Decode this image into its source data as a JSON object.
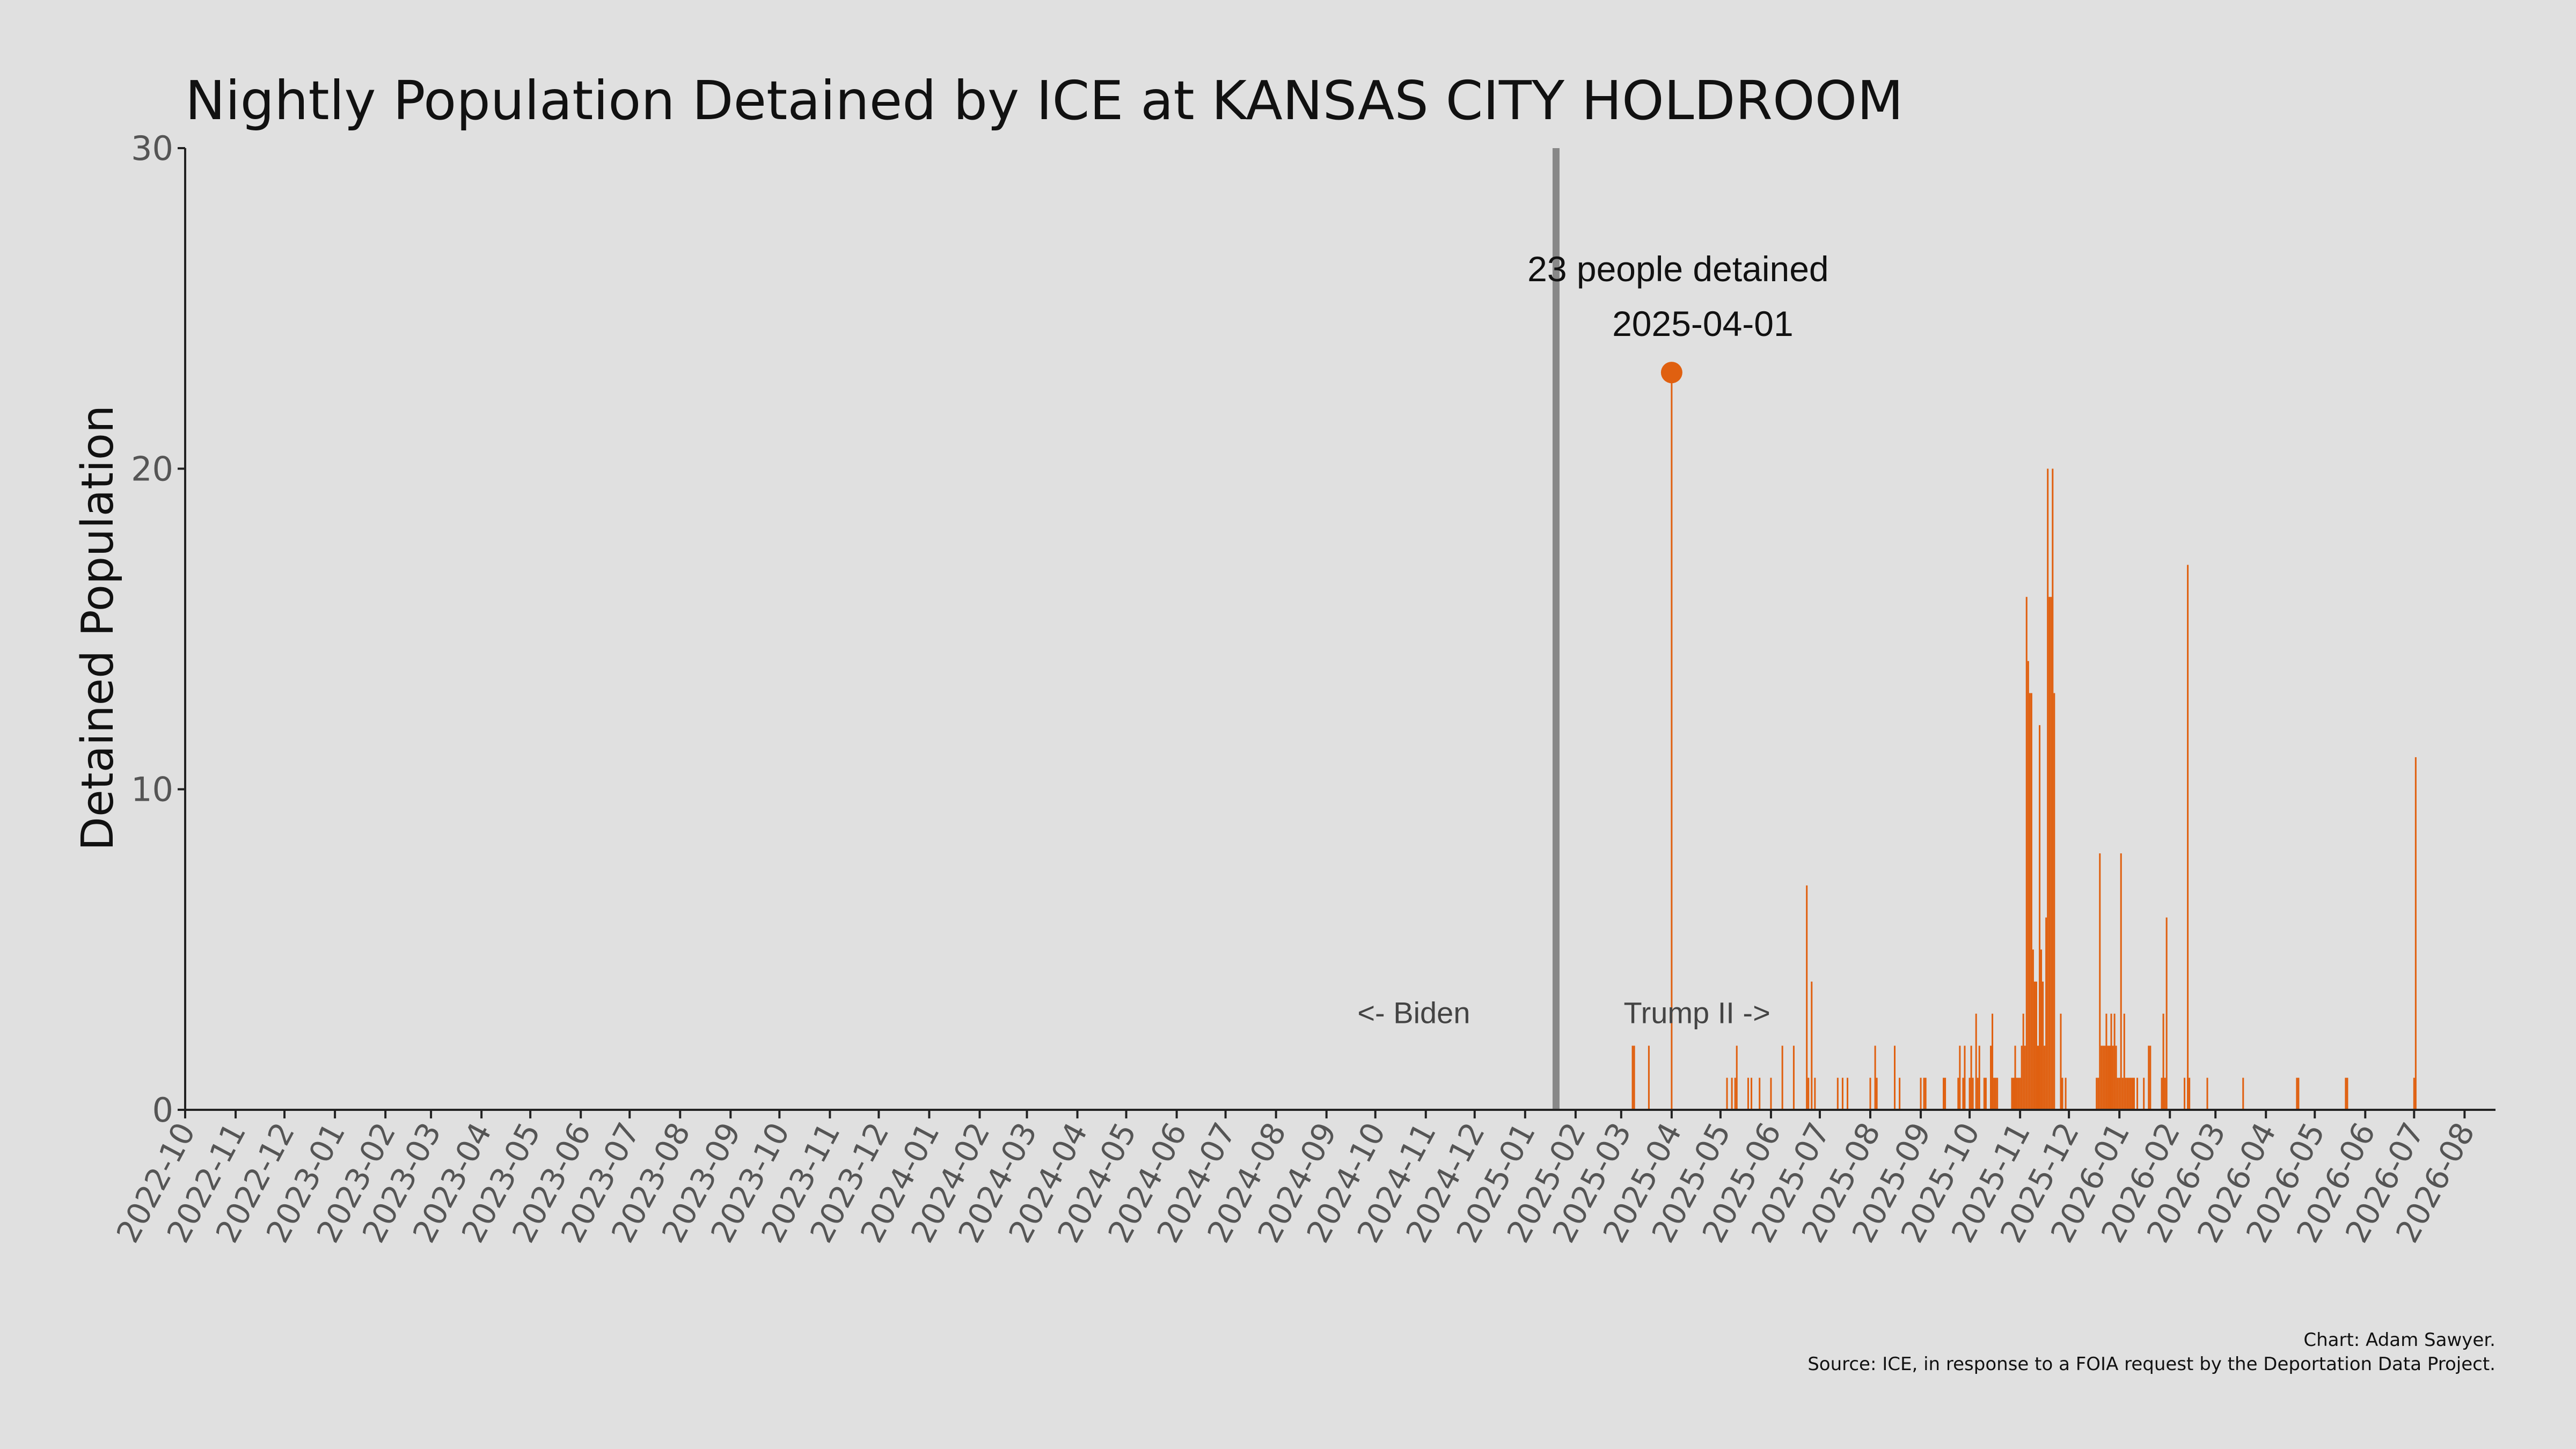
{
  "colors": {
    "background": "#e0e0e0",
    "bar": "#e06010",
    "policy_line": "#888888",
    "axis": "#222222",
    "text": "#111111",
    "tick_text": "#555555"
  },
  "chart_data": {
    "type": "bar",
    "title": "Nightly Population Detained by ICE at KANSAS CITY HOLDROOM",
    "xlabel": "",
    "ylabel": "Detained Population",
    "ylim": [
      0,
      30
    ],
    "y_ticks": [
      0,
      10,
      20,
      30
    ],
    "xlim": [
      "2022-10-01",
      "2026-08-20"
    ],
    "x_tick_labels": [
      "2022-10",
      "2022-11",
      "2022-12",
      "2023-01",
      "2023-02",
      "2023-03",
      "2023-04",
      "2023-05",
      "2023-06",
      "2023-07",
      "2023-08",
      "2023-09",
      "2023-10",
      "2023-11",
      "2023-12",
      "2024-01",
      "2024-02",
      "2024-03",
      "2024-04",
      "2024-05",
      "2024-06",
      "2024-07",
      "2024-08",
      "2024-09",
      "2024-10",
      "2024-11",
      "2024-12",
      "2025-01",
      "2025-02",
      "2025-03",
      "2025-04",
      "2025-05",
      "2025-06",
      "2025-07",
      "2025-08",
      "2025-09",
      "2025-10",
      "2025-11",
      "2025-12",
      "2026-01",
      "2026-02",
      "2026-03",
      "2026-04",
      "2026-05",
      "2026-06",
      "2026-07",
      "2026-08"
    ],
    "grid": false,
    "vertical_line": {
      "date": "2025-01-20"
    },
    "era_labels": {
      "left": "<- Biden",
      "right": "Trump II ->"
    },
    "highlight": {
      "date": "2025-04-01",
      "value": 23,
      "label_line1": "23 people detained",
      "label_line2": "2025-04-01"
    },
    "series": [
      {
        "x": [
          "2025-03-08",
          "2025-03-09",
          "2025-03-18",
          "2025-04-01",
          "2025-05-05",
          "2025-05-08",
          "2025-05-10",
          "2025-05-11",
          "2025-05-18",
          "2025-05-20",
          "2025-05-25",
          "2025-06-01",
          "2025-06-08",
          "2025-06-15",
          "2025-06-23",
          "2025-06-24",
          "2025-06-26",
          "2025-06-28",
          "2025-07-12",
          "2025-07-15",
          "2025-07-18",
          "2025-08-01",
          "2025-08-04",
          "2025-08-05",
          "2025-08-16",
          "2025-08-19",
          "2025-09-01",
          "2025-09-03",
          "2025-09-04",
          "2025-09-15",
          "2025-09-16",
          "2025-09-24",
          "2025-09-25",
          "2025-09-27",
          "2025-09-28",
          "2025-10-01",
          "2025-10-02",
          "2025-10-03",
          "2025-10-05",
          "2025-10-06",
          "2025-10-07",
          "2025-10-10",
          "2025-10-11",
          "2025-10-14",
          "2025-10-15",
          "2025-10-16",
          "2025-10-17",
          "2025-10-18",
          "2025-10-27",
          "2025-10-28",
          "2025-10-29",
          "2025-10-30",
          "2025-10-31",
          "2025-11-01",
          "2025-11-02",
          "2025-11-03",
          "2025-11-04",
          "2025-11-05",
          "2025-11-06",
          "2025-11-07",
          "2025-11-08",
          "2025-11-09",
          "2025-11-10",
          "2025-11-11",
          "2025-11-12",
          "2025-11-13",
          "2025-11-14",
          "2025-11-15",
          "2025-11-16",
          "2025-11-17",
          "2025-11-18",
          "2025-11-19",
          "2025-11-20",
          "2025-11-21",
          "2025-11-22",
          "2025-11-26",
          "2025-11-27",
          "2025-11-29",
          "2025-12-18",
          "2025-12-19",
          "2025-12-20",
          "2025-12-21",
          "2025-12-22",
          "2025-12-23",
          "2025-12-24",
          "2025-12-25",
          "2025-12-26",
          "2025-12-27",
          "2025-12-28",
          "2025-12-29",
          "2025-12-30",
          "2025-12-31",
          "2026-01-01",
          "2026-01-02",
          "2026-01-03",
          "2026-01-04",
          "2026-01-05",
          "2026-01-06",
          "2026-01-07",
          "2026-01-08",
          "2026-01-09",
          "2026-01-10",
          "2026-01-12",
          "2026-01-16",
          "2026-01-19",
          "2026-01-20",
          "2026-01-27",
          "2026-01-28",
          "2026-01-29",
          "2026-01-30",
          "2026-02-10",
          "2026-02-12",
          "2026-02-13",
          "2026-02-24",
          "2026-03-18",
          "2026-04-20",
          "2026-04-21",
          "2026-05-20",
          "2026-05-21",
          "2026-07-01",
          "2026-07-02"
        ],
        "values": [
          2,
          2,
          2,
          23,
          1,
          1,
          1,
          2,
          1,
          1,
          1,
          1,
          2,
          2,
          7,
          1,
          4,
          1,
          1,
          1,
          1,
          1,
          2,
          1,
          2,
          1,
          1,
          1,
          1,
          1,
          1,
          1,
          2,
          1,
          2,
          1,
          2,
          1,
          3,
          1,
          2,
          1,
          1,
          2,
          3,
          1,
          1,
          1,
          1,
          1,
          2,
          1,
          1,
          1,
          2,
          3,
          2,
          16,
          14,
          13,
          13,
          5,
          4,
          4,
          2,
          12,
          5,
          4,
          2,
          6,
          20,
          16,
          16,
          20,
          13,
          3,
          1,
          1,
          1,
          1,
          8,
          2,
          2,
          2,
          3,
          2,
          2,
          3,
          2,
          3,
          2,
          1,
          1,
          8,
          1,
          3,
          1,
          1,
          1,
          1,
          1,
          1,
          1,
          1,
          2,
          2,
          1,
          3,
          1,
          6,
          1,
          17,
          1,
          1,
          1,
          1,
          1,
          1,
          1,
          1,
          11
        ]
      }
    ],
    "credits": [
      "Chart: Adam Sawyer.",
      "Source: ICE, in response to a FOIA request by the Deportation Data Project."
    ]
  }
}
